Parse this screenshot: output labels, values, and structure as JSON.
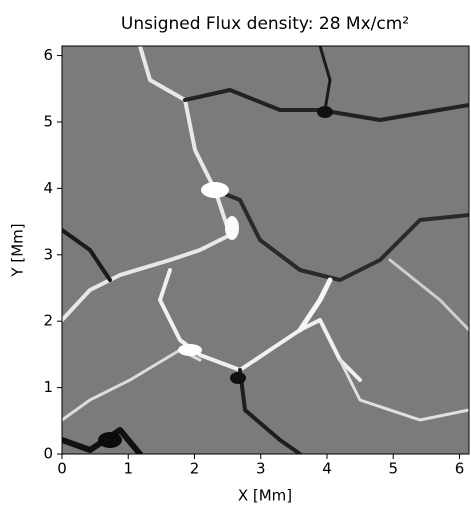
{
  "chart_data": {
    "type": "image",
    "title": "Unsigned Flux density: 28 Mx/cm²",
    "x_label": "X [Mm]",
    "y_label": "Y [Mm]",
    "xlim": [
      0,
      6.144
    ],
    "ylim": [
      0,
      6.144
    ],
    "xticks": [
      0,
      1,
      2,
      3,
      4,
      5,
      6
    ],
    "yticks": [
      0,
      1,
      2,
      3,
      4,
      5,
      6
    ],
    "colormap": "gray"
  }
}
